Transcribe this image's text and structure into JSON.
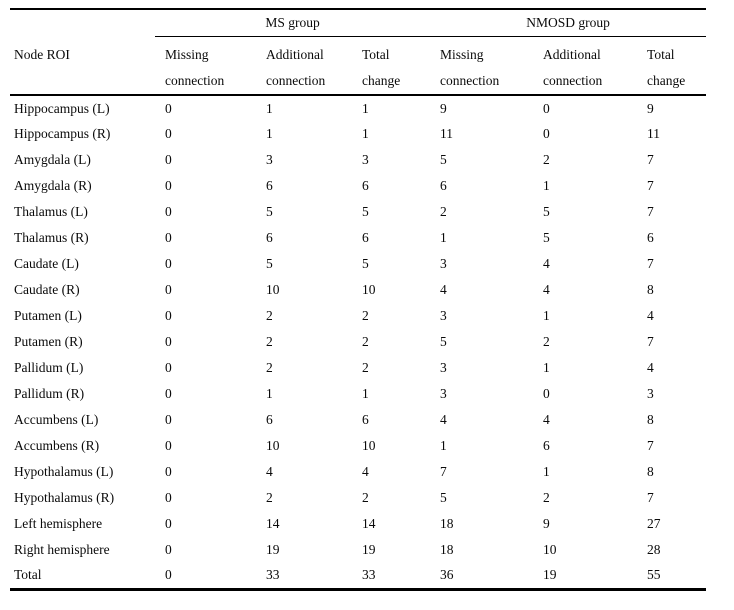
{
  "table": {
    "header": {
      "node_roi": "Node ROI",
      "groups": [
        {
          "label": "MS group"
        },
        {
          "label": "NMOSD group"
        }
      ],
      "subcolumns": [
        {
          "line1": "Missing",
          "line2": "connection"
        },
        {
          "line1": "Additional",
          "line2": "connection"
        },
        {
          "line1": "Total",
          "line2": "change"
        }
      ]
    },
    "rows": [
      {
        "label": "Hippocampus (L)",
        "values": [
          "0",
          "1",
          "1",
          "9",
          "0",
          "9"
        ]
      },
      {
        "label": "Hippocampus (R)",
        "values": [
          "0",
          "1",
          "1",
          "11",
          "0",
          "11"
        ]
      },
      {
        "label": "Amygdala (L)",
        "values": [
          "0",
          "3",
          "3",
          "5",
          "2",
          "7"
        ]
      },
      {
        "label": "Amygdala (R)",
        "values": [
          "0",
          "6",
          "6",
          "6",
          "1",
          "7"
        ]
      },
      {
        "label": "Thalamus (L)",
        "values": [
          "0",
          "5",
          "5",
          "2",
          "5",
          "7"
        ]
      },
      {
        "label": "Thalamus (R)",
        "values": [
          "0",
          "6",
          "6",
          "1",
          "5",
          "6"
        ]
      },
      {
        "label": "Caudate (L)",
        "values": [
          "0",
          "5",
          "5",
          "3",
          "4",
          "7"
        ]
      },
      {
        "label": "Caudate (R)",
        "values": [
          "0",
          "10",
          "10",
          "4",
          "4",
          "8"
        ]
      },
      {
        "label": "Putamen (L)",
        "values": [
          "0",
          "2",
          "2",
          "3",
          "1",
          "4"
        ]
      },
      {
        "label": "Putamen (R)",
        "values": [
          "0",
          "2",
          "2",
          "5",
          "2",
          "7"
        ]
      },
      {
        "label": "Pallidum (L)",
        "values": [
          "0",
          "2",
          "2",
          "3",
          "1",
          "4"
        ]
      },
      {
        "label": "Pallidum (R)",
        "values": [
          "0",
          "1",
          "1",
          "3",
          "0",
          "3"
        ]
      },
      {
        "label": "Accumbens (L)",
        "values": [
          "0",
          "6",
          "6",
          "4",
          "4",
          "8"
        ]
      },
      {
        "label": "Accumbens (R)",
        "values": [
          "0",
          "10",
          "10",
          "1",
          "6",
          "7"
        ]
      },
      {
        "label": "Hypothalamus (L)",
        "values": [
          "0",
          "4",
          "4",
          "7",
          "1",
          "8"
        ]
      },
      {
        "label": "Hypothalamus (R)",
        "values": [
          "0",
          "2",
          "2",
          "5",
          "2",
          "7"
        ]
      },
      {
        "label": "Left hemisphere",
        "values": [
          "0",
          "14",
          "14",
          "18",
          "9",
          "27"
        ]
      },
      {
        "label": "Right hemisphere",
        "values": [
          "0",
          "19",
          "19",
          "18",
          "10",
          "28"
        ]
      },
      {
        "label": "Total",
        "values": [
          "0",
          "33",
          "33",
          "36",
          "19",
          "55"
        ]
      }
    ]
  }
}
